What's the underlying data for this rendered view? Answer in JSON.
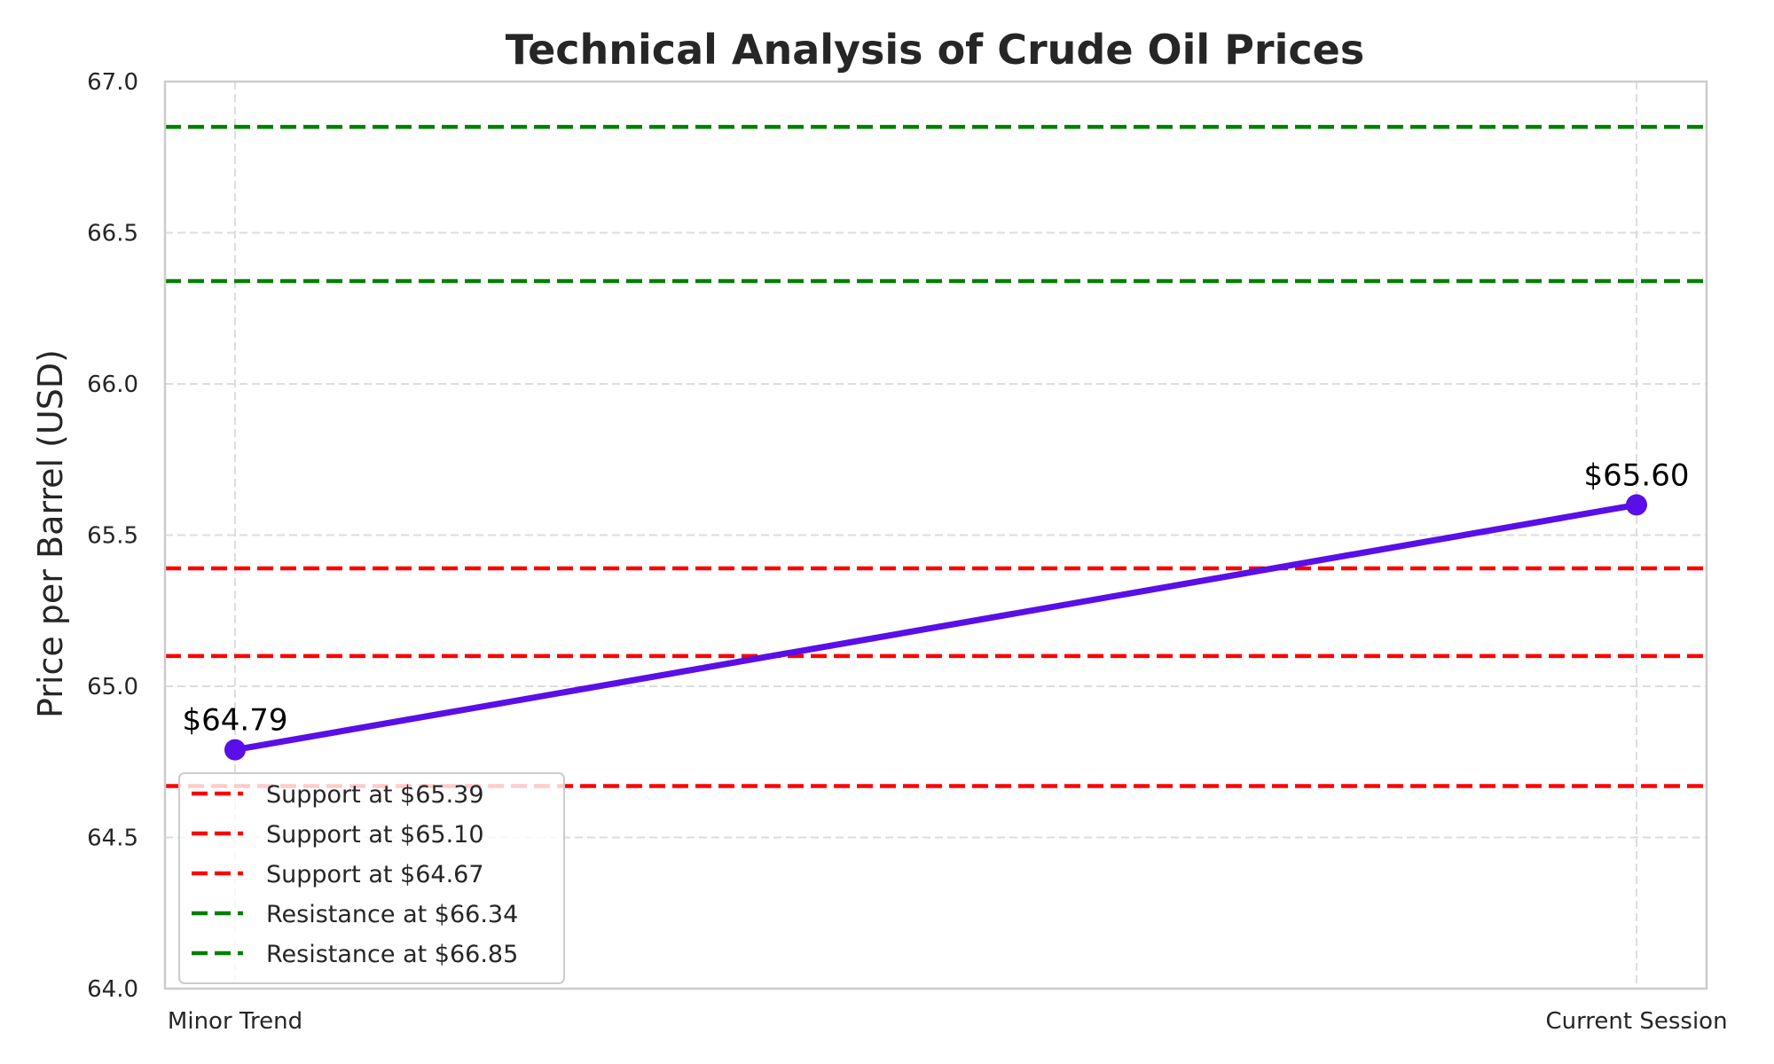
{
  "chart_data": {
    "type": "line",
    "title": "Technical Analysis of Crude Oil Prices",
    "xlabel": "",
    "ylabel": "Price per Barrel (USD)",
    "categories": [
      "Minor Trend",
      "Current Session"
    ],
    "ylim": [
      64.0,
      67.0
    ],
    "yticks": [
      "64.0",
      "64.5",
      "65.0",
      "65.5",
      "66.0",
      "66.5",
      "67.0"
    ],
    "grid": true,
    "legend_position": "lower-left",
    "series": [
      {
        "values": [
          64.79,
          65.6
        ],
        "labels": [
          "$64.79",
          "$65.60"
        ],
        "color": "#5a0fe8"
      }
    ],
    "reference_lines": [
      {
        "label": "Support at $65.39",
        "value": 65.39,
        "color": "#ff0000"
      },
      {
        "label": "Support at $65.10",
        "value": 65.1,
        "color": "#ff0000"
      },
      {
        "label": "Support at $64.67",
        "value": 64.67,
        "color": "#ff0000"
      },
      {
        "label": "Resistance at $66.34",
        "value": 66.34,
        "color": "#008000"
      },
      {
        "label": "Resistance at $66.85",
        "value": 66.85,
        "color": "#008000"
      }
    ]
  }
}
